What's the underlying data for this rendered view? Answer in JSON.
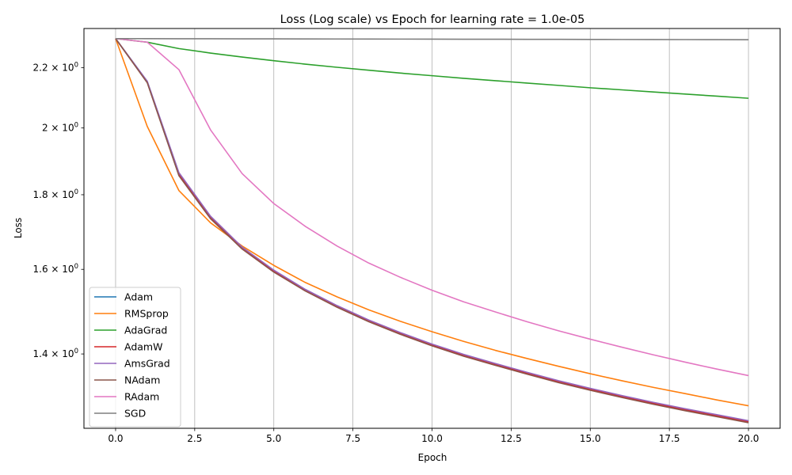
{
  "chart_data": {
    "type": "line",
    "title": "Loss (Log scale) vs Epoch for learning rate = 1.0e-05",
    "xlabel": "Epoch",
    "ylabel": "Loss",
    "xlim": [
      -1.0,
      21.0
    ],
    "ylim": [
      1.245,
      2.34
    ],
    "yscale": "log",
    "grid": "vertical",
    "legend_position": "lower-left",
    "x_ticks": [
      0.0,
      2.5,
      5.0,
      7.5,
      10.0,
      12.5,
      15.0,
      17.5,
      20.0
    ],
    "x_tick_labels": [
      "0.0",
      "2.5",
      "5.0",
      "7.5",
      "10.0",
      "12.5",
      "15.0",
      "17.5",
      "20.0"
    ],
    "y_ticks": [
      1.4,
      1.6,
      1.8,
      2.0,
      2.2
    ],
    "y_tick_mantissas": [
      "1.4",
      "1.6",
      "1.8",
      "2",
      "2.2"
    ],
    "y_tick_base": "10",
    "y_tick_exponent": "0",
    "x": [
      0,
      1,
      2,
      3,
      4,
      5,
      6,
      7,
      8,
      9,
      10,
      11,
      12,
      13,
      14,
      15,
      16,
      17,
      18,
      19,
      20
    ],
    "series": [
      {
        "name": "Adam",
        "color": "#1f77b4",
        "values": [
          2.303,
          2.152,
          1.862,
          1.738,
          1.656,
          1.597,
          1.549,
          1.51,
          1.476,
          1.447,
          1.421,
          1.398,
          1.378,
          1.359,
          1.341,
          1.325,
          1.31,
          1.296,
          1.283,
          1.271,
          1.259
        ]
      },
      {
        "name": "RMSprop",
        "color": "#ff7f0e",
        "values": [
          2.303,
          2.005,
          1.812,
          1.722,
          1.66,
          1.61,
          1.567,
          1.532,
          1.501,
          1.474,
          1.45,
          1.428,
          1.408,
          1.39,
          1.373,
          1.357,
          1.342,
          1.328,
          1.315,
          1.302,
          1.29
        ]
      },
      {
        "name": "AdaGrad",
        "color": "#2ca02c",
        "values": [
          2.303,
          2.29,
          2.267,
          2.251,
          2.237,
          2.224,
          2.212,
          2.201,
          2.191,
          2.181,
          2.172,
          2.163,
          2.155,
          2.147,
          2.139,
          2.131,
          2.124,
          2.117,
          2.11,
          2.103,
          2.096
        ]
      },
      {
        "name": "AdamW",
        "color": "#d62728",
        "values": [
          2.303,
          2.15,
          1.858,
          1.735,
          1.654,
          1.595,
          1.548,
          1.509,
          1.475,
          1.446,
          1.42,
          1.397,
          1.377,
          1.358,
          1.34,
          1.324,
          1.309,
          1.295,
          1.282,
          1.27,
          1.258
        ]
      },
      {
        "name": "AmsGrad",
        "color": "#9467bd",
        "values": [
          2.303,
          2.153,
          1.864,
          1.74,
          1.657,
          1.598,
          1.55,
          1.511,
          1.477,
          1.448,
          1.422,
          1.399,
          1.379,
          1.36,
          1.342,
          1.326,
          1.311,
          1.297,
          1.284,
          1.272,
          1.26
        ]
      },
      {
        "name": "NAdam",
        "color": "#8c564b",
        "values": [
          2.303,
          2.148,
          1.855,
          1.733,
          1.652,
          1.593,
          1.546,
          1.507,
          1.473,
          1.444,
          1.418,
          1.395,
          1.375,
          1.356,
          1.338,
          1.322,
          1.307,
          1.293,
          1.28,
          1.268,
          1.256
        ]
      },
      {
        "name": "RAdam",
        "color": "#e377c2",
        "values": [
          2.303,
          2.29,
          2.193,
          1.994,
          1.861,
          1.775,
          1.712,
          1.66,
          1.616,
          1.58,
          1.548,
          1.52,
          1.496,
          1.473,
          1.452,
          1.433,
          1.415,
          1.398,
          1.382,
          1.367,
          1.353
        ]
      },
      {
        "name": "SGD",
        "color": "#7f7f7f",
        "values": [
          2.303,
          2.3028,
          2.3026,
          2.3024,
          2.3022,
          2.302,
          2.3018,
          2.3016,
          2.3014,
          2.3012,
          2.301,
          2.3008,
          2.3006,
          2.3004,
          2.3002,
          2.3,
          2.2998,
          2.2996,
          2.2994,
          2.2992,
          2.299
        ]
      }
    ]
  }
}
